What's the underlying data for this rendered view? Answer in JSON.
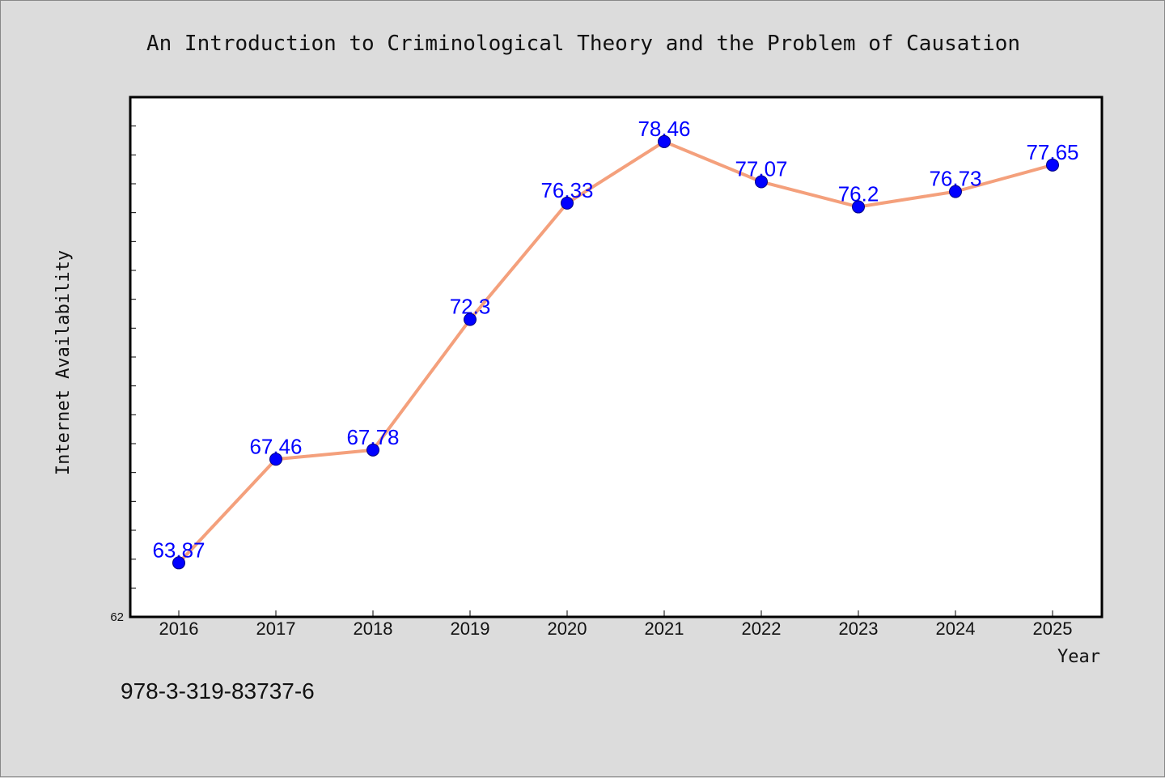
{
  "footer_text": "978-3-319-83737-6",
  "chart_data": {
    "type": "line",
    "title": "An Introduction to Criminological Theory and the Problem of Causation",
    "xlabel": "Year",
    "ylabel": "Internet Availability",
    "x": [
      "2016",
      "2017",
      "2018",
      "2019",
      "2020",
      "2021",
      "2022",
      "2023",
      "2024",
      "2025"
    ],
    "values": [
      63.87,
      67.46,
      67.78,
      72.3,
      76.33,
      78.46,
      77.07,
      76.2,
      76.73,
      77.65
    ],
    "data_labels": [
      "63.87",
      "67.46",
      "67.78",
      "72.3",
      "76.33",
      "78.46",
      "77.07",
      "76.2",
      "76.73",
      "77.65"
    ],
    "y_min_label": "62",
    "ylim": [
      62,
      80
    ],
    "y_minor_tick_step": 1,
    "grid": false,
    "legend": "none",
    "colors": {
      "line": "#f4a07c",
      "marker": "#0000ff",
      "marker_edge": "#000080",
      "data_label": "#0000ff",
      "plot_background": "#ffffff",
      "figure_background": "#dcdcdc"
    }
  }
}
